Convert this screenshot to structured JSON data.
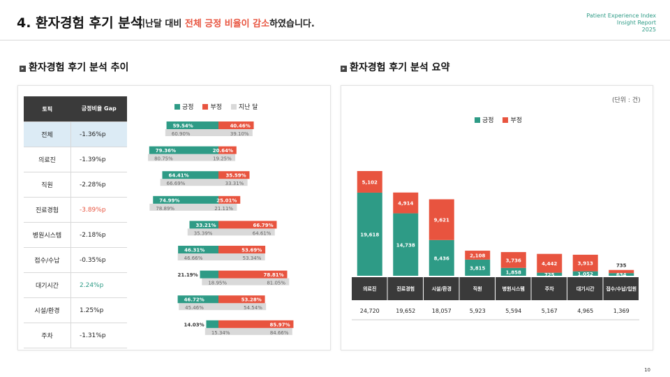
{
  "header": {
    "title": "4. 환자경험 후기 분석",
    "subtitle_prefix": "지난달 대비 ",
    "subtitle_highlight": "전체 긍정 비율이 감소",
    "subtitle_suffix": "하였습니다.",
    "report_line1": "Patient Experience Index",
    "report_line2": "Insight Report",
    "report_line3": "2025"
  },
  "left": {
    "section_title": "환자경험 후기 분석 추이",
    "table_header_topic": "토픽",
    "table_header_gap": "긍정비율 Gap",
    "legend": {
      "positive": "긍정",
      "negative": "부정",
      "last_month": "지난 달"
    },
    "rows": [
      {
        "topic": "전체",
        "gap": "-1.36%p",
        "pos": "59.54%",
        "neg": "40.46%",
        "prev_pos": "60.90%",
        "prev_neg": "39.10%"
      },
      {
        "topic": "의료진",
        "gap": "-1.39%p",
        "pos": "79.36%",
        "neg": "20.64%",
        "prev_pos": "80.75%",
        "prev_neg": "19.25%"
      },
      {
        "topic": "직원",
        "gap": "-2.28%p",
        "pos": "64.41%",
        "neg": "35.59%",
        "prev_pos": "66.69%",
        "prev_neg": "33.31%"
      },
      {
        "topic": "진료경험",
        "gap": "-3.89%p",
        "pos": "74.99%",
        "neg": "25.01%",
        "prev_pos": "78.89%",
        "prev_neg": "21.11%"
      },
      {
        "topic": "병원시스템",
        "gap": "-2.18%p",
        "pos": "33.21%",
        "neg": "66.79%",
        "prev_pos": "35.39%",
        "prev_neg": "64.61%"
      },
      {
        "topic": "접수/수납",
        "gap": "-0.35%p",
        "pos": "46.31%",
        "neg": "53.69%",
        "prev_pos": "46.66%",
        "prev_neg": "53.34%"
      },
      {
        "topic": "대기시간",
        "gap": "2.24%p",
        "pos": "21.19%",
        "neg": "78.81%",
        "prev_pos": "18.95%",
        "prev_neg": "81.05%"
      },
      {
        "topic": "시설/환경",
        "gap": "1.25%p",
        "pos": "46.72%",
        "neg": "53.28%",
        "prev_pos": "45.46%",
        "prev_neg": "54.54%"
      },
      {
        "topic": "주차",
        "gap": "-1.31%p",
        "pos": "14.03%",
        "neg": "85.97%",
        "prev_pos": "15.34%",
        "prev_neg": "84.66%"
      }
    ]
  },
  "right": {
    "section_title": "환자경험 후기 분석 요약",
    "unit": "(단위 : 건)",
    "legend": {
      "positive": "긍정",
      "negative": "부정"
    }
  },
  "chart_data": [
    {
      "type": "bar",
      "categories": [
        "전체",
        "의료진",
        "직원",
        "진료경험",
        "병원시스템",
        "접수/수납",
        "대기시간",
        "시설/환경",
        "주차"
      ],
      "series": [
        {
          "name": "긍정",
          "values": [
            59.54,
            79.36,
            64.41,
            74.99,
            33.21,
            46.31,
            21.19,
            46.72,
            14.03
          ]
        },
        {
          "name": "부정",
          "values": [
            40.46,
            20.64,
            35.59,
            25.01,
            66.79,
            53.69,
            78.81,
            53.28,
            85.97
          ]
        },
        {
          "name": "지난 달",
          "values": [
            60.9,
            80.75,
            66.69,
            78.89,
            35.39,
            46.66,
            18.95,
            45.46,
            15.34
          ]
        }
      ],
      "prev_negative": [
        39.1,
        19.25,
        33.31,
        21.11,
        64.61,
        53.34,
        81.05,
        54.54,
        84.66
      ]
    },
    {
      "type": "bar",
      "stacked": true,
      "categories": [
        "의료진",
        "진료경험",
        "시설/환경",
        "직원",
        "병원시스템",
        "주차",
        "대기시간",
        "접수/수납/입원"
      ],
      "series": [
        {
          "name": "긍정",
          "values": [
            19618,
            14738,
            8436,
            3815,
            1858,
            725,
            1052,
            634
          ]
        },
        {
          "name": "부정",
          "values": [
            5102,
            4914,
            9621,
            2108,
            3736,
            4442,
            3913,
            735
          ]
        }
      ],
      "totals": [
        24720,
        19652,
        18057,
        5923,
        5594,
        5167,
        4965,
        1369
      ]
    }
  ],
  "colors": {
    "positive": "#2e9b86",
    "negative": "#e8543f",
    "last_month": "#d9d9d9",
    "header": "#3a3a3a"
  },
  "page_number": "10"
}
